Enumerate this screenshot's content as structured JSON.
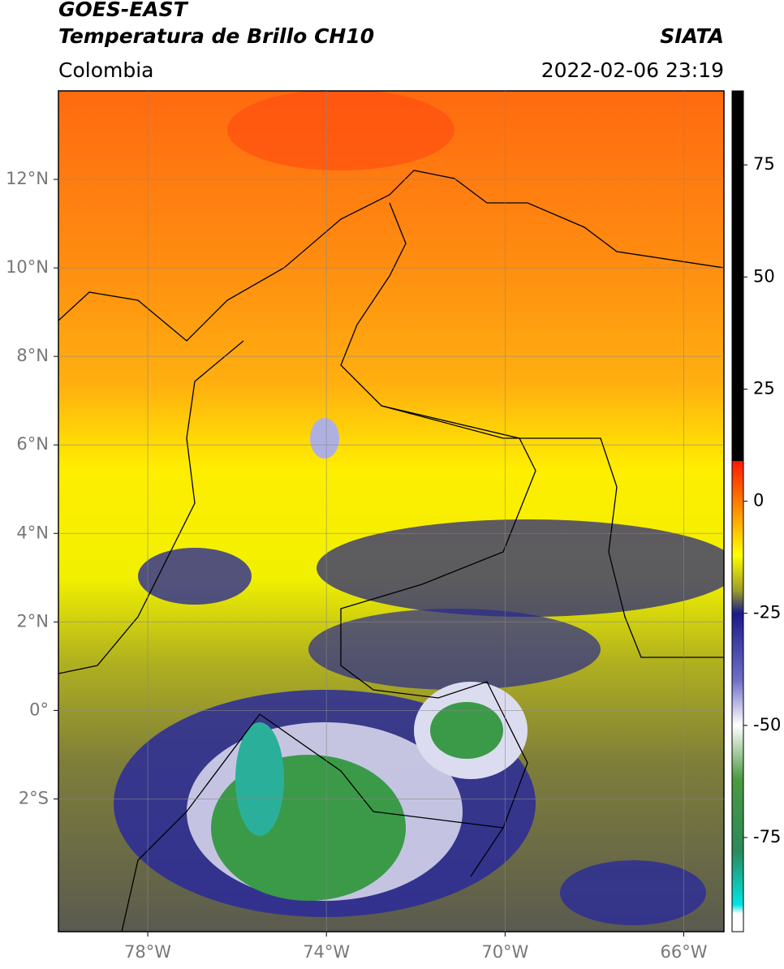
{
  "header": {
    "title": "GOES-EAST",
    "subtitle": "Temperatura de Brillo CH10",
    "source": "SIATA",
    "region": "Colombia",
    "datetime": "2022-02-06 23:19"
  },
  "map": {
    "xlim": [
      -80,
      -65.1
    ],
    "ylim": [
      -5,
      14
    ],
    "xticks": [
      {
        "value": -78,
        "label": "78°W"
      },
      {
        "value": -74,
        "label": "74°W"
      },
      {
        "value": -70,
        "label": "70°W"
      },
      {
        "value": -66,
        "label": "66°W"
      }
    ],
    "yticks": [
      {
        "value": 12,
        "label": "12°N"
      },
      {
        "value": 10,
        "label": "10°N"
      },
      {
        "value": 8,
        "label": "8°N"
      },
      {
        "value": 6,
        "label": "6°N"
      },
      {
        "value": 4,
        "label": "4°N"
      },
      {
        "value": 2,
        "label": "2°N"
      },
      {
        "value": 0,
        "label": "0°"
      },
      {
        "value": -2,
        "label": "2°S"
      }
    ],
    "grid": true
  },
  "colorbar": {
    "lim": [
      -96,
      91.5
    ],
    "ticks": [
      75,
      50,
      25,
      0,
      -25,
      -50,
      -75
    ],
    "stops": [
      {
        "value": 91.5,
        "color": "#000000"
      },
      {
        "value": 9,
        "color": "#000000"
      },
      {
        "value": 8.9,
        "color": "#ff1a00"
      },
      {
        "value": 0,
        "color": "#ff7a00"
      },
      {
        "value": -12,
        "color": "#ffff00"
      },
      {
        "value": -20,
        "color": "#9c9c2a"
      },
      {
        "value": -25,
        "color": "#1a1a8a"
      },
      {
        "value": -40,
        "color": "#7070c8"
      },
      {
        "value": -50,
        "color": "#ffffff"
      },
      {
        "value": -62,
        "color": "#4a9a40"
      },
      {
        "value": -78,
        "color": "#2a8a5a"
      },
      {
        "value": -90,
        "color": "#00e5e5"
      },
      {
        "value": -92,
        "color": "#ffffff"
      },
      {
        "value": -96,
        "color": "#ffffff"
      }
    ]
  }
}
